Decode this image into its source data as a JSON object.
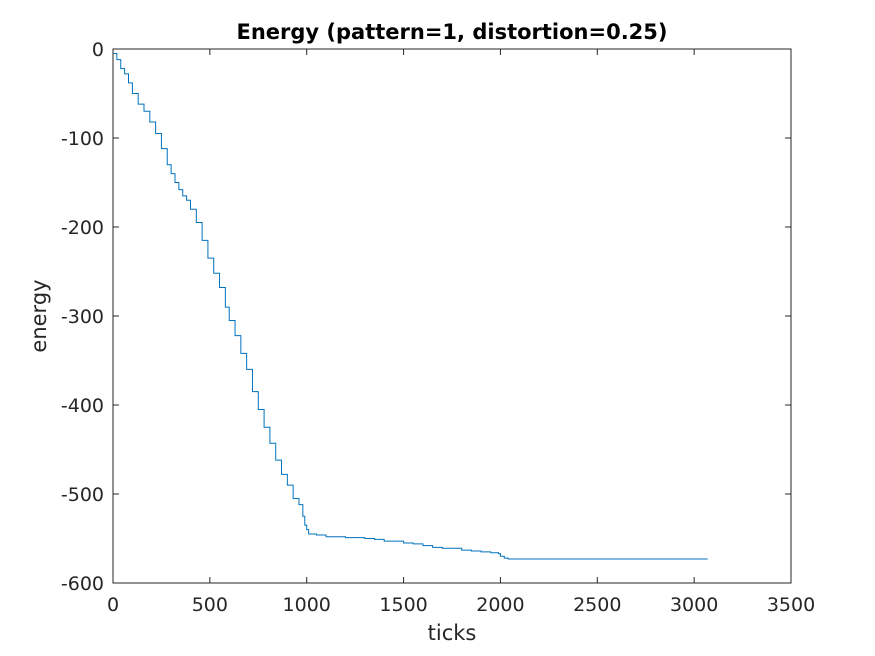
{
  "chart_data": {
    "type": "line",
    "title": "Energy (pattern=1, distortion=0.25)",
    "xlabel": "ticks",
    "ylabel": "energy",
    "xlim": [
      0,
      3500
    ],
    "ylim": [
      -600,
      0
    ],
    "xticks": [
      0,
      500,
      1000,
      1500,
      2000,
      2500,
      3000,
      3500
    ],
    "yticks": [
      0,
      -100,
      -200,
      -300,
      -400,
      -500,
      -600
    ],
    "grid": false,
    "line_color": "#0072BD",
    "series": [
      {
        "x": [
          0,
          20,
          40,
          60,
          80,
          100,
          130,
          160,
          190,
          220,
          250,
          280,
          300,
          320,
          340,
          360,
          380,
          400,
          430,
          460,
          490,
          520,
          550,
          580,
          600,
          630,
          660,
          690,
          720,
          750,
          780,
          810,
          840,
          870,
          900,
          930,
          960,
          980,
          990,
          1000,
          1010,
          1050,
          1100,
          1200,
          1300,
          1350,
          1400,
          1500,
          1550,
          1600,
          1650,
          1700,
          1800,
          1850,
          1900,
          1950,
          1990,
          2000,
          2020,
          2040,
          2100,
          2300,
          2600,
          2900,
          3070
        ],
        "y": [
          -5,
          -12,
          -22,
          -28,
          -38,
          -50,
          -62,
          -70,
          -82,
          -95,
          -112,
          -130,
          -140,
          -150,
          -158,
          -165,
          -170,
          -180,
          -195,
          -215,
          -235,
          -252,
          -268,
          -290,
          -305,
          -322,
          -342,
          -360,
          -385,
          -405,
          -425,
          -443,
          -462,
          -478,
          -490,
          -505,
          -512,
          -525,
          -535,
          -540,
          -545,
          -546,
          -548,
          -549,
          -550,
          -551,
          -553,
          -555,
          -556,
          -558,
          -560,
          -561,
          -563,
          -564,
          -565,
          -566,
          -567,
          -570,
          -572,
          -573,
          -573,
          -573,
          -573,
          -573,
          -573
        ]
      }
    ]
  }
}
